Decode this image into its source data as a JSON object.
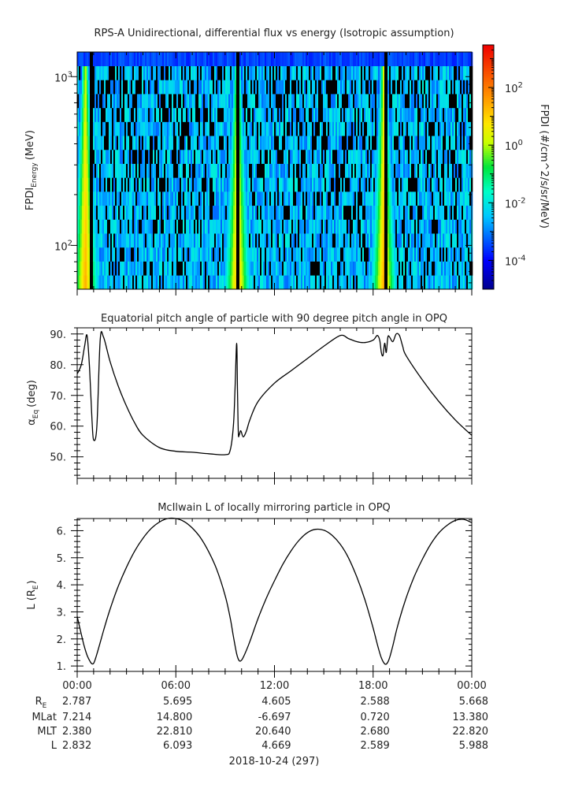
{
  "panels": [
    {
      "title": "RPS-A Unidirectional, differential flux vs energy (Isotropic assumption)",
      "ylabel": "FPDI",
      "ylabel_sub": "Energy",
      "ylabel_unit": "(MeV)",
      "colorbar_label": "FPDI (#/cm^2/s/sr/MeV)"
    },
    {
      "title": "Equatorial pitch angle of particle with 90 degree pitch angle in OPQ",
      "ylabel": "α",
      "ylabel_sub": "Eq",
      "ylabel_unit": "(deg)"
    },
    {
      "title": "McIlwain L of locally mirroring particle in OPQ",
      "ylabel": "L (R",
      "ylabel_sub": "E",
      "ylabel_unit": ")"
    }
  ],
  "ephemeris": {
    "labels": [
      {
        "main": "R",
        "sub": "E"
      },
      {
        "main": "MLat",
        "sub": ""
      },
      {
        "main": "MLT",
        "sub": ""
      },
      {
        "main": "L",
        "sub": ""
      }
    ],
    "columns": [
      {
        "time": "00:00",
        "values": [
          "2.787",
          "7.214",
          "2.380",
          "2.832"
        ]
      },
      {
        "time": "06:00",
        "values": [
          "5.695",
          "14.800",
          "22.810",
          "6.093"
        ]
      },
      {
        "time": "12:00",
        "values": [
          "4.605",
          "-6.697",
          "20.640",
          "4.669"
        ]
      },
      {
        "time": "18:00",
        "values": [
          "2.588",
          "0.720",
          "2.680",
          "2.589"
        ]
      },
      {
        "time": "00:00",
        "values": [
          "5.668",
          "13.380",
          "22.820",
          "5.988"
        ]
      }
    ]
  },
  "date_label": "2018-10-24 (297)",
  "chart_data": [
    {
      "type": "heatmap",
      "title": "RPS-A Unidirectional, differential flux vs energy (Isotropic assumption)",
      "xlabel": "",
      "ylabel": "FPDI Energy (MeV)",
      "x_unit": "hours",
      "xlim": [
        0,
        24
      ],
      "y_scale": "log",
      "ylim": [
        55,
        1400
      ],
      "ytick_labels": [
        {
          "value": 100,
          "base": "10",
          "exp": "2"
        },
        {
          "value": 1000,
          "base": "10",
          "exp": "3"
        }
      ],
      "energy_channel_count": 17,
      "colorbar": {
        "scale": "log",
        "range": [
          1e-05,
          3000
        ],
        "colormap": "rainbow",
        "tick_labels": [
          {
            "value": 100,
            "base": "10",
            "exp": "2"
          },
          {
            "value": 1,
            "base": "10",
            "exp": "0"
          },
          {
            "value": 0.01,
            "base": "10",
            "exp": "-2"
          },
          {
            "value": 0.0001,
            "base": "10",
            "exp": "-4"
          }
        ]
      },
      "flux_enhancements": [
        {
          "center_hour": 0.45,
          "peak_log10_flux": 1.5
        },
        {
          "center_hour": 9.7,
          "peak_log10_flux": 1.5
        },
        {
          "center_hour": 18.6,
          "peak_log10_flux": 1.5
        }
      ],
      "no_data_hours": [
        0.8,
        9.75,
        18.7
      ]
    },
    {
      "type": "line",
      "title": "Equatorial pitch angle of particle with 90 degree pitch angle in OPQ",
      "xlabel": "",
      "ylabel": "αEq (deg)",
      "x_unit": "hours",
      "xlim": [
        0,
        24
      ],
      "ylim": [
        43,
        92
      ],
      "yticks": [
        50,
        60,
        70,
        80,
        90
      ],
      "ytick_labels": [
        "50.",
        "60.",
        "70.",
        "80.",
        "90."
      ],
      "x": [
        0.0,
        0.25,
        0.45,
        0.6,
        0.75,
        0.9,
        1.0,
        1.2,
        1.4,
        1.6,
        2.0,
        2.5,
        3.0,
        3.5,
        4.0,
        5.0,
        6.0,
        7.0,
        8.0,
        9.0,
        9.3,
        9.5,
        9.6,
        9.7,
        9.75,
        9.8,
        9.85,
        9.95,
        10.1,
        10.3,
        10.5,
        11.0,
        12.0,
        13.0,
        14.0,
        15.0,
        16.0,
        16.5,
        17.0,
        17.5,
        18.0,
        18.25,
        18.4,
        18.5,
        18.6,
        18.7,
        18.8,
        18.9,
        19.0,
        19.2,
        19.4,
        19.6,
        19.8,
        20.0,
        21.0,
        22.0,
        23.0,
        24.0
      ],
      "y": [
        77,
        80,
        86,
        89.5,
        79,
        62,
        55.5,
        60,
        88,
        89,
        81,
        73,
        66.5,
        61,
        57,
        53,
        51.8,
        51.5,
        51,
        50.7,
        52,
        60,
        72,
        87,
        72,
        58,
        57,
        58.5,
        56.5,
        58.5,
        62,
        68,
        74,
        78,
        82,
        86,
        89.5,
        88.5,
        87.5,
        87.2,
        88,
        89.5,
        88,
        84,
        83,
        87,
        84,
        89,
        89,
        87.5,
        90,
        89.5,
        86,
        83,
        75,
        68,
        62,
        57
      ]
    },
    {
      "type": "line",
      "title": "McIlwain L of locally mirroring particle in OPQ",
      "xlabel": "",
      "ylabel": "L (RE)",
      "x_unit": "hours",
      "xlim": [
        0,
        24
      ],
      "ylim": [
        0.8,
        6.45
      ],
      "yticks": [
        1,
        2,
        3,
        4,
        5,
        6
      ],
      "ytick_labels": [
        "1.",
        "2.",
        "3.",
        "4.",
        "5.",
        "6."
      ],
      "x": [
        0.0,
        0.2,
        0.4,
        0.6,
        0.8,
        0.9,
        1.0,
        1.1,
        1.3,
        1.6,
        2.0,
        2.5,
        3.0,
        3.5,
        4.0,
        4.5,
        5.0,
        5.5,
        6.0,
        6.5,
        7.0,
        7.5,
        8.0,
        8.5,
        9.0,
        9.3,
        9.5,
        9.7,
        9.85,
        10.0,
        10.2,
        10.5,
        11.0,
        11.5,
        12.0,
        12.5,
        13.0,
        13.5,
        14.0,
        14.5,
        15.0,
        15.5,
        16.0,
        16.5,
        17.0,
        17.5,
        18.0,
        18.3,
        18.5,
        18.7,
        18.85,
        19.0,
        19.2,
        19.5,
        20.0,
        20.5,
        21.0,
        21.5,
        22.0,
        22.5,
        23.0,
        23.5,
        24.0
      ],
      "y": [
        2.83,
        2.3,
        1.8,
        1.4,
        1.15,
        1.08,
        1.1,
        1.25,
        1.65,
        2.3,
        3.1,
        3.95,
        4.65,
        5.25,
        5.72,
        6.08,
        6.32,
        6.45,
        6.45,
        6.34,
        6.1,
        5.74,
        5.22,
        4.55,
        3.6,
        2.8,
        2.1,
        1.45,
        1.2,
        1.22,
        1.45,
        1.9,
        2.75,
        3.5,
        4.15,
        4.75,
        5.25,
        5.65,
        5.93,
        6.05,
        6.02,
        5.83,
        5.5,
        5.0,
        4.3,
        3.45,
        2.4,
        1.7,
        1.3,
        1.08,
        1.1,
        1.3,
        1.75,
        2.5,
        3.5,
        4.3,
        4.95,
        5.5,
        5.92,
        6.2,
        6.38,
        6.42,
        6.3
      ]
    }
  ]
}
